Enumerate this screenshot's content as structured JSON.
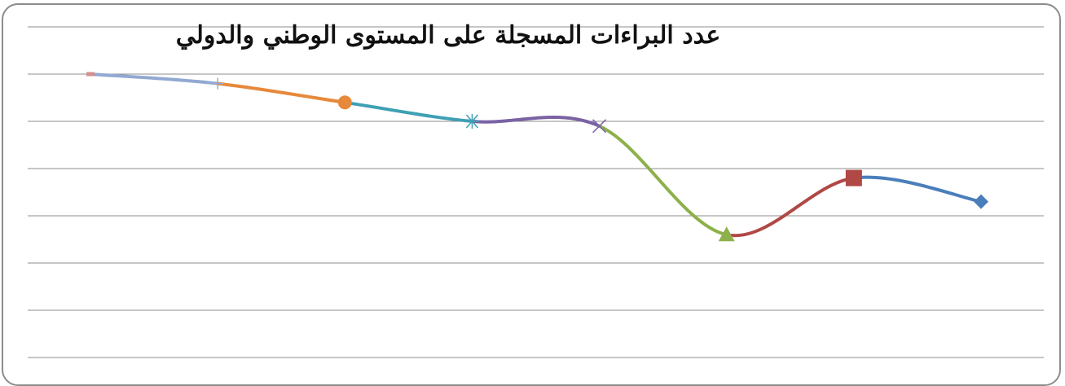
{
  "chart_data": {
    "type": "line",
    "title": "عدد البراءات المسجلة على المستوى الوطني والدولي",
    "xlabel": "",
    "ylabel": "",
    "ylim": [
      0,
      7
    ],
    "grid": true,
    "legend": "none",
    "smooth": true,
    "series": [
      {
        "x": 1,
        "y": 6.0,
        "color": "#d4908f",
        "marker": "dash"
      },
      {
        "x": 2,
        "y": 5.8,
        "color": "#93a9d2",
        "marker": "plus"
      },
      {
        "x": 3,
        "y": 5.4,
        "color": "#e6893b",
        "marker": "circle"
      },
      {
        "x": 4,
        "y": 5.0,
        "color": "#3fa0b4",
        "marker": "star"
      },
      {
        "x": 5,
        "y": 4.9,
        "color": "#7a62a3",
        "marker": "x"
      },
      {
        "x": 6,
        "y": 2.6,
        "color": "#8db04a",
        "marker": "triangle"
      },
      {
        "x": 7,
        "y": 3.8,
        "color": "#b04846",
        "marker": "square"
      },
      {
        "x": 8,
        "y": 3.3,
        "color": "#4a7ebb",
        "marker": "diamond"
      }
    ]
  }
}
